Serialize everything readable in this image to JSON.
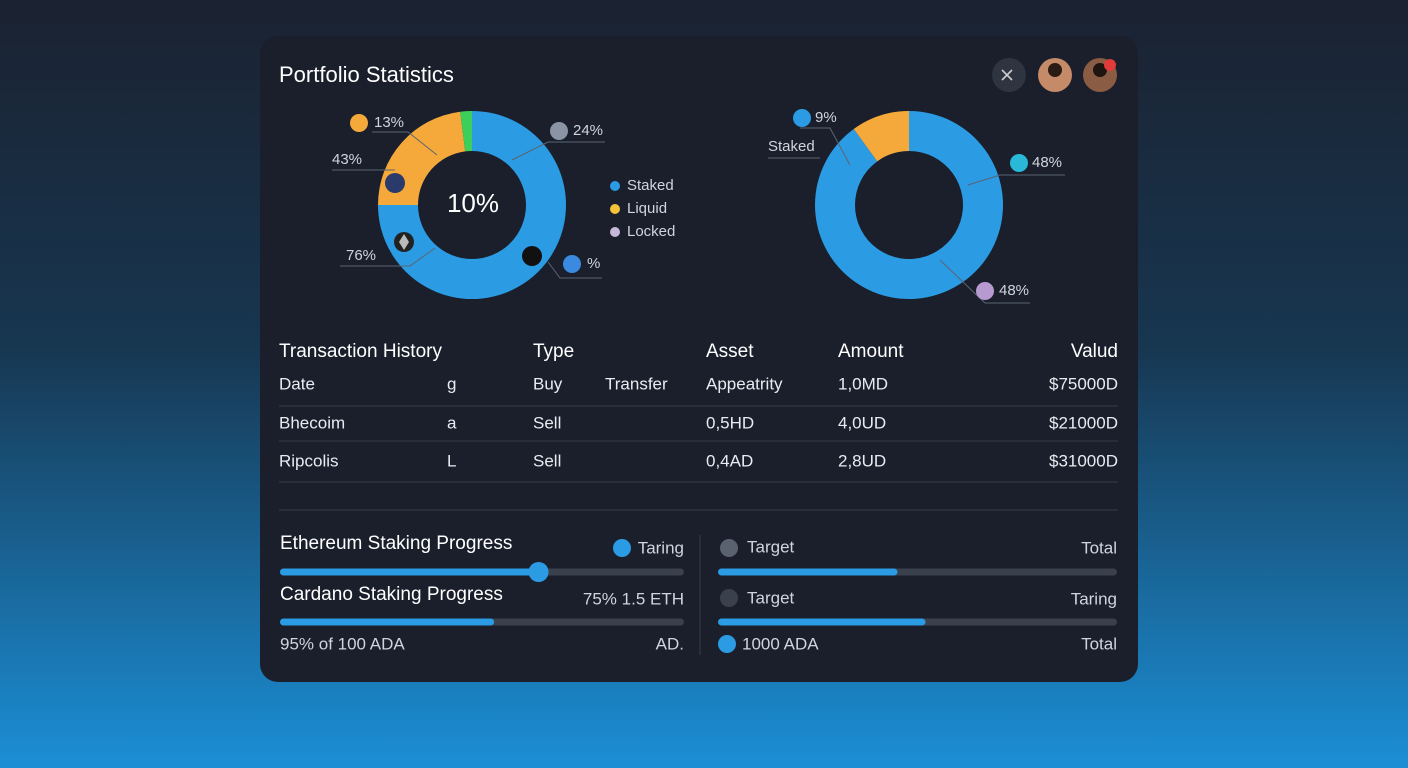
{
  "header": {
    "title": "Portfolio Statistics"
  },
  "donuts": [
    {
      "center": "10%",
      "segments": [
        {
          "color": "#2b9be3",
          "value": 75
        },
        {
          "color": "#f5a93a",
          "value": 23
        },
        {
          "color": "#3ccf5a",
          "value": 2
        }
      ],
      "labels": [
        "13%",
        "43%",
        "76%",
        "24%",
        "%"
      ]
    },
    {
      "segments": [
        {
          "color": "#2b9be3",
          "value": 90
        },
        {
          "color": "#f5a93a",
          "value": 10
        }
      ],
      "labels": [
        "9%",
        "Staked",
        "48%",
        "48%"
      ]
    }
  ],
  "legend": [
    {
      "name": "Staked",
      "color": "#2b9be3"
    },
    {
      "name": "Liquid",
      "color": "#f5c33a"
    },
    {
      "name": "Locked",
      "color": "#c8b8d8"
    }
  ],
  "table": {
    "headers": [
      "Transaction History",
      "Type",
      "Asset",
      "Amount",
      "Valud"
    ],
    "rows": [
      {
        "name": "Date",
        "code": "g",
        "type": "Buy",
        "sub": "Transfer",
        "asset": "Appeatrity",
        "amount": "1,0MD",
        "value": "$75000D"
      },
      {
        "name": "Bhecoim",
        "code": "a",
        "type": "Sell",
        "asset": "0,5HD",
        "amount": "4,0UD",
        "value": "$21000D"
      },
      {
        "name": "Ripcolis",
        "code": "L",
        "type": "Sell",
        "asset": "0,4AD",
        "amount": "2,8UD",
        "value": "$31000D"
      }
    ]
  },
  "progress": {
    "left": [
      {
        "title": "Ethereum Staking Progress",
        "right": "Taring",
        "value": 64
      },
      {
        "title": "Cardano Staking Progress",
        "right": "75% 1.5 ETH",
        "value": 53
      }
    ],
    "left_footer": {
      "text": "95% of 100 ADA",
      "right": "AD."
    },
    "right": [
      {
        "title": "Target",
        "right": "Total",
        "value": 45
      },
      {
        "title": "Target",
        "right": "Taring",
        "value": 52
      }
    ],
    "right_footer": {
      "text": "1000 ADA",
      "right": "Total"
    }
  }
}
